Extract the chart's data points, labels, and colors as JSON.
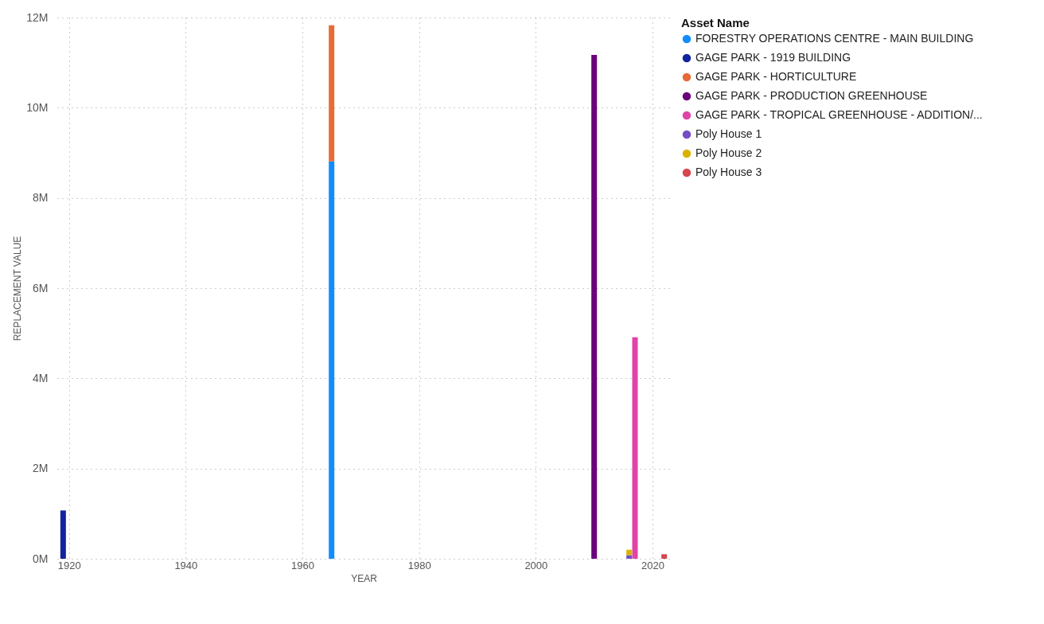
{
  "chart_data": {
    "type": "bar",
    "xlabel": "YEAR",
    "ylabel": "REPLACEMENT VALUE",
    "legend_title": "Asset Name",
    "stacked": true,
    "grid": true,
    "legend": "top right",
    "xlim": [
      1918,
      2023
    ],
    "x": [
      1919,
      1965,
      2010,
      2016,
      2017,
      2022
    ],
    "xticks": [
      1920,
      1940,
      1960,
      1980,
      2000,
      2020
    ],
    "ylim": [
      0,
      12
    ],
    "yticks": [
      {
        "value": 0,
        "label": "0M"
      },
      {
        "value": 2,
        "label": "2M"
      },
      {
        "value": 4,
        "label": "4M"
      },
      {
        "value": 6,
        "label": "6M"
      },
      {
        "value": 8,
        "label": "8M"
      },
      {
        "value": 10,
        "label": "10M"
      },
      {
        "value": 12,
        "label": "12M"
      }
    ],
    "series": [
      {
        "name": "FORESTRY OPERATIONS CENTRE - MAIN BUILDING",
        "color": "#118dff",
        "values": [
          null,
          8.81,
          null,
          null,
          null,
          null
        ]
      },
      {
        "name": "GAGE PARK - 1919 BUILDING",
        "color": "#12239e",
        "values": [
          1.07,
          null,
          null,
          null,
          null,
          null
        ]
      },
      {
        "name": "GAGE PARK - HORTICULTURE",
        "color": "#e66c37",
        "values": [
          null,
          3.02,
          null,
          null,
          null,
          null
        ]
      },
      {
        "name": "GAGE PARK - PRODUCTION GREENHOUSE",
        "color": "#6b007b",
        "values": [
          null,
          null,
          11.17,
          null,
          null,
          null
        ]
      },
      {
        "name": "GAGE PARK - TROPICAL GREENHOUSE - ADDITION/...",
        "color": "#e044a7",
        "values": [
          null,
          null,
          null,
          null,
          4.91,
          null
        ]
      },
      {
        "name": "Poly House 1",
        "color": "#744ec2",
        "values": [
          null,
          null,
          null,
          0.08,
          null,
          null
        ]
      },
      {
        "name": "Poly House 2",
        "color": "#d9b300",
        "values": [
          null,
          null,
          null,
          0.12,
          null,
          null
        ]
      },
      {
        "name": "Poly House 3",
        "color": "#d64550",
        "values": [
          null,
          null,
          null,
          null,
          null,
          0.1
        ]
      }
    ]
  }
}
